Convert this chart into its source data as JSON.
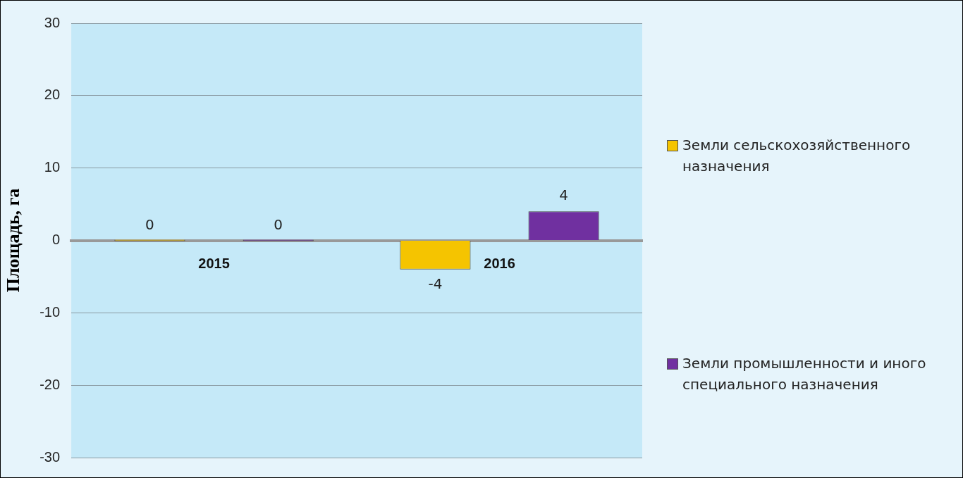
{
  "chart_data": {
    "type": "bar",
    "ylabel": "Площадь, га",
    "categories": [
      "2015",
      "2016"
    ],
    "series": [
      {
        "name": "Земли сельскохозяйственного назначения",
        "color": "#f5c400",
        "values": [
          0,
          -4
        ]
      },
      {
        "name": "Земли промышленности и иного специального назначения",
        "color": "#7030a0",
        "values": [
          0,
          4
        ]
      }
    ],
    "ylim": [
      -30,
      30
    ],
    "yticks": [
      -30,
      -20,
      -10,
      0,
      10,
      20,
      30
    ],
    "grid": "y",
    "legend": "right",
    "data_labels": true
  }
}
